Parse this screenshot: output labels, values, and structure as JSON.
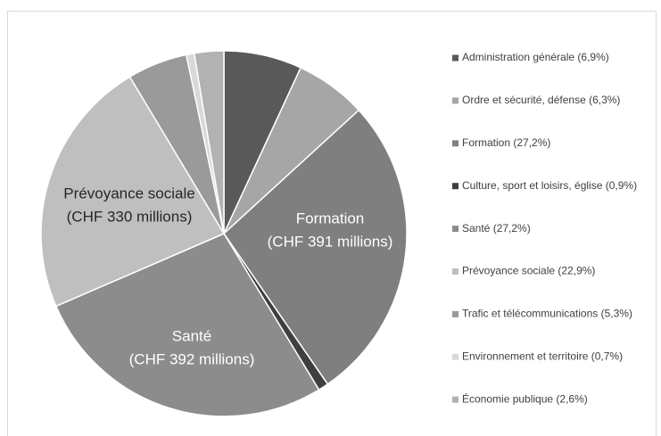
{
  "chart_data": {
    "type": "pie",
    "categories": [
      "Administration générale (6,9%)",
      "Ordre et sécurité, défense (6,3%)",
      "Formation (27,2%)",
      "Culture, sport et loisirs, église (0,9%)",
      "Santé (27,2%)",
      "Prévoyance sociale (22,9%)",
      "Trafic et télécommunications (5,3%)",
      "Environnement et territoire (0,7%)",
      "Économie publique (2,6%)"
    ],
    "values": [
      6.9,
      6.3,
      27.2,
      0.9,
      27.2,
      22.9,
      5.3,
      0.7,
      2.6
    ],
    "colors": [
      "#595959",
      "#a6a6a6",
      "#7f7f7f",
      "#3f3f3f",
      "#8c8c8c",
      "#bfbfbf",
      "#9a9a9a",
      "#d9d9d9",
      "#b2b2b2"
    ],
    "legend": "right",
    "annotations": [
      {
        "text": [
          "Formation",
          "(CHF 391 millions)"
        ]
      },
      {
        "text": [
          "Santé",
          "(CHF 392 millions)"
        ]
      },
      {
        "text": [
          "Prévoyance sociale",
          "(CHF 330 millions)"
        ]
      }
    ]
  }
}
